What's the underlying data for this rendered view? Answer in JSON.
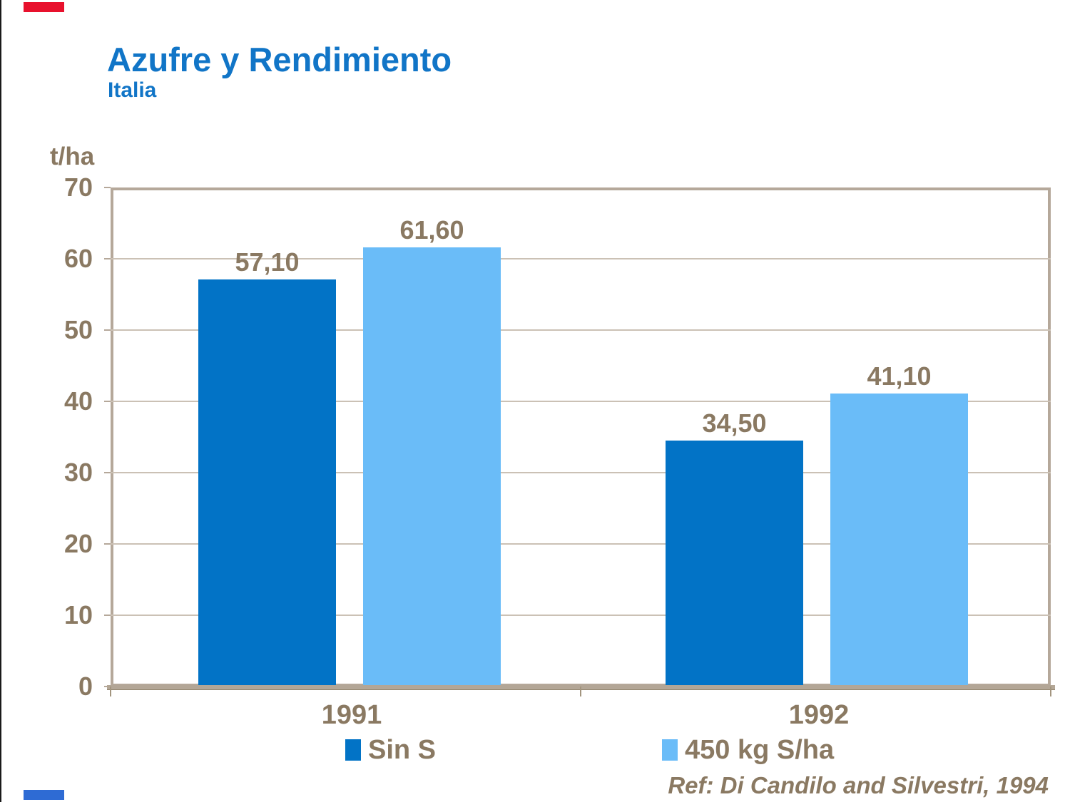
{
  "slide": {
    "title": "Azufre y Rendimiento",
    "subtitle": "Italia"
  },
  "decorations": {
    "left_edge_color": "#1a1a1a",
    "top_left_mark_color": "#e8112d",
    "bottom_left_mark_color": "#2e6bd4"
  },
  "chart_data": {
    "type": "bar",
    "title": "Azufre y Rendimiento",
    "subtitle": "Italia",
    "unit_label": "t/ha",
    "categories": [
      "1991",
      "1992"
    ],
    "series": [
      {
        "name": "Sin S",
        "color": "#0273c6",
        "values": [
          57.1,
          34.5
        ],
        "value_labels": [
          "57,10",
          "34,50"
        ]
      },
      {
        "name": "450 kg S/ha",
        "color": "#6abcf8",
        "values": [
          61.6,
          41.1
        ],
        "value_labels": [
          "61,60",
          "41,10"
        ]
      }
    ],
    "ylim": [
      0,
      70
    ],
    "yticks": [
      0,
      10,
      20,
      30,
      40,
      50,
      60,
      70
    ],
    "grid": true,
    "legend_position": "bottom",
    "frame_color": "#b5a89a",
    "gridline_color": "#cbc1b5",
    "text_color": "#8a7962"
  },
  "footer": {
    "reference": "Ref: Di Candilo and Silvestri, 1994"
  }
}
